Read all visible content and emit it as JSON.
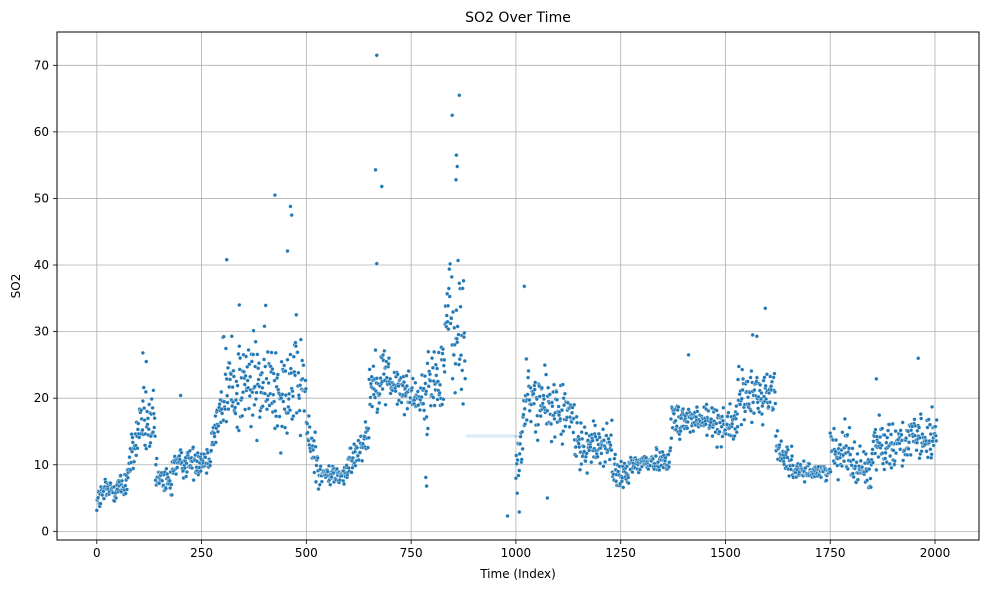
{
  "chart_data": {
    "type": "scatter",
    "title": "SO2 Over Time",
    "xlabel": "Time (Index)",
    "ylabel": "SO2",
    "xlim": [
      -95,
      2105
    ],
    "ylim": [
      -1.3,
      75
    ],
    "x_ticks": [
      0,
      250,
      500,
      750,
      1000,
      1250,
      1500,
      1750,
      2000
    ],
    "y_ticks": [
      0,
      10,
      20,
      30,
      40,
      50,
      60,
      70
    ],
    "grid": true,
    "colors": {
      "point": "#1f77b4",
      "flat_point": "#a6cbe8",
      "grid": "#b0b0b0",
      "axis": "#000000"
    },
    "series": [
      {
        "name": "SO2",
        "segments": [
          {
            "from": 0,
            "to": 20,
            "base": [
              4.5,
              6
            ],
            "spread": 1.8
          },
          {
            "from": 20,
            "to": 70,
            "base": [
              6,
              7
            ],
            "spread": 2.0
          },
          {
            "from": 70,
            "to": 100,
            "base": [
              8,
              15
            ],
            "spread": 3.0
          },
          {
            "from": 100,
            "to": 140,
            "base": [
              17,
              15
            ],
            "spread": 4.5
          },
          {
            "from": 140,
            "to": 180,
            "base": [
              8,
              7
            ],
            "spread": 2.0
          },
          {
            "from": 180,
            "to": 270,
            "base": [
              10,
              11
            ],
            "spread": 2.0
          },
          {
            "from": 270,
            "to": 300,
            "base": [
              13,
              19
            ],
            "spread": 3.0
          },
          {
            "from": 300,
            "to": 500,
            "base": [
              22,
              22
            ],
            "spread": 7.0
          },
          {
            "from": 500,
            "to": 530,
            "base": [
              15,
              10
            ],
            "spread": 3.0
          },
          {
            "from": 530,
            "to": 600,
            "base": [
              8.5,
              8.5
            ],
            "spread": 1.5
          },
          {
            "from": 600,
            "to": 650,
            "base": [
              10,
              15
            ],
            "spread": 2.0
          },
          {
            "from": 650,
            "to": 700,
            "base": [
              22,
              24
            ],
            "spread": 4.0
          },
          {
            "from": 700,
            "to": 780,
            "base": [
              22,
              20
            ],
            "spread": 2.5
          },
          {
            "from": 780,
            "to": 830,
            "base": [
              20,
              25
            ],
            "spread": 5.0
          },
          {
            "from": 830,
            "to": 880,
            "base": [
              32,
              28
            ],
            "spread": 10.0
          },
          {
            "from": 1000,
            "to": 1030,
            "base": [
              8,
              22
            ],
            "spread": 5.0
          },
          {
            "from": 1030,
            "to": 1140,
            "base": [
              20,
              17
            ],
            "spread": 4.0
          },
          {
            "from": 1140,
            "to": 1230,
            "base": [
              13,
              13
            ],
            "spread": 3.0
          },
          {
            "from": 1230,
            "to": 1270,
            "base": [
              9,
              8
            ],
            "spread": 2.0
          },
          {
            "from": 1270,
            "to": 1370,
            "base": [
              10,
              11
            ],
            "spread": 1.5
          },
          {
            "from": 1370,
            "to": 1530,
            "base": [
              17,
              16
            ],
            "spread": 2.5
          },
          {
            "from": 1530,
            "to": 1620,
            "base": [
              20,
              21
            ],
            "spread": 3.5
          },
          {
            "from": 1620,
            "to": 1660,
            "base": [
              13,
              10
            ],
            "spread": 2.0
          },
          {
            "from": 1660,
            "to": 1750,
            "base": [
              9,
              9
            ],
            "spread": 1.0
          },
          {
            "from": 1750,
            "to": 1800,
            "base": [
              12,
              13
            ],
            "spread": 3.0
          },
          {
            "from": 1800,
            "to": 1850,
            "base": [
              10,
              9
            ],
            "spread": 3.0
          },
          {
            "from": 1850,
            "to": 2005,
            "base": [
              13,
              14
            ],
            "spread": 3.0
          }
        ],
        "outliers": [
          [
            668,
            71.5
          ],
          [
            665,
            54.3
          ],
          [
            680,
            51.8
          ],
          [
            865,
            65.5
          ],
          [
            848,
            62.5
          ],
          [
            858,
            56.5
          ],
          [
            860,
            54.8
          ],
          [
            857,
            52.8
          ],
          [
            425,
            50.5
          ],
          [
            462,
            48.8
          ],
          [
            465,
            47.5
          ],
          [
            310,
            40.8
          ],
          [
            455,
            42.1
          ],
          [
            668,
            40.2
          ],
          [
            1020,
            36.8
          ],
          [
            1595,
            33.5
          ],
          [
            340,
            34
          ],
          [
            1565,
            29.5
          ],
          [
            1575,
            29.3
          ],
          [
            1960,
            26
          ],
          [
            1412,
            26.5
          ],
          [
            110,
            26.8
          ],
          [
            118,
            25.5
          ],
          [
            980,
            2.3
          ],
          [
            787,
            6.8
          ],
          [
            1075,
            5
          ],
          [
            1008,
            2.9
          ],
          [
            200,
            20.4
          ],
          [
            1860,
            22.9
          ],
          [
            785,
            8.1
          ]
        ],
        "flat_run": {
          "from": 885,
          "to": 1000,
          "value": 14.3
        }
      }
    ]
  }
}
